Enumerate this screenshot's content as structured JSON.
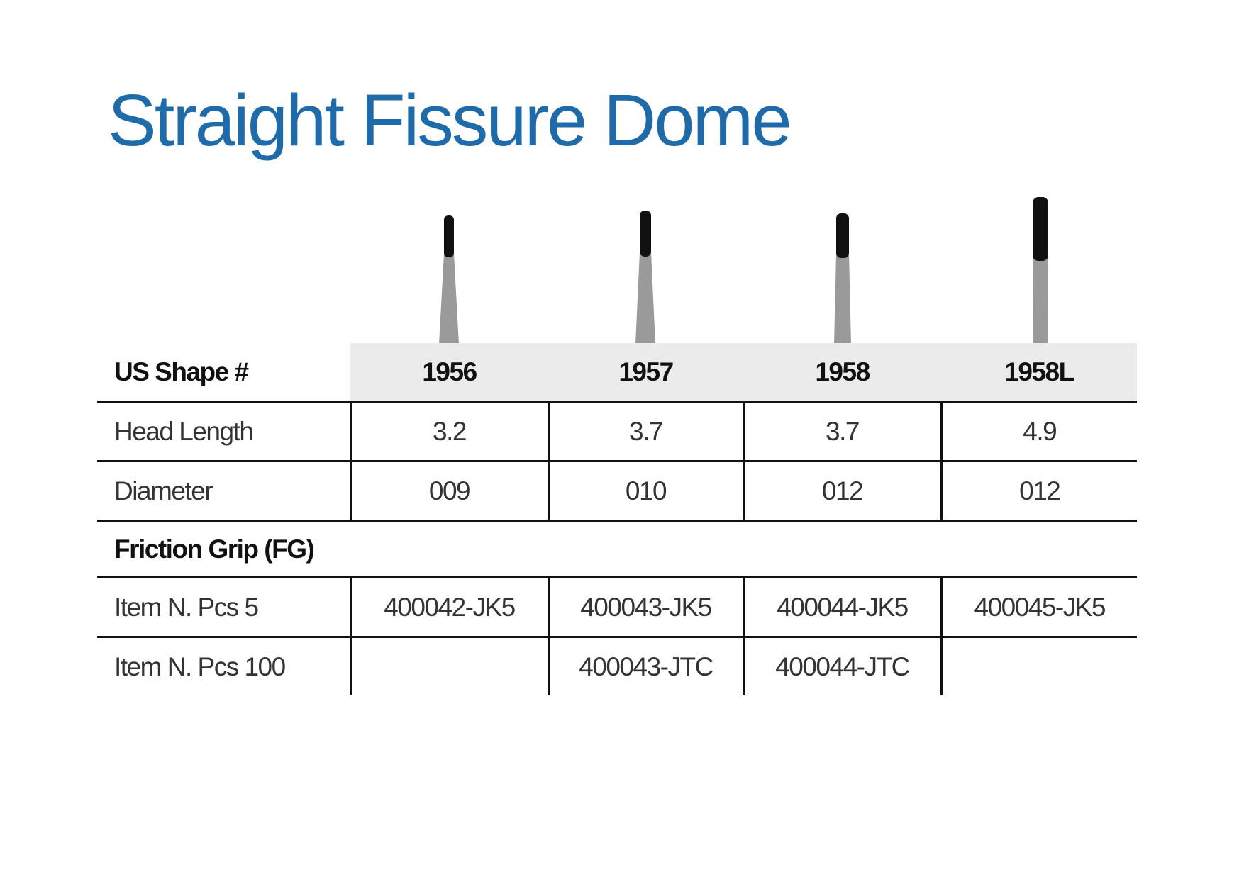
{
  "title": "Straight Fissure Dome",
  "colors": {
    "title": "#1f6aa9",
    "header_fill": "#ebebeb",
    "rules": "#111111",
    "bur_head": "#111111",
    "bur_shank": "#9a9a9a"
  },
  "bur_icons": [
    {
      "shape": "1956",
      "icon": "straight-fissure-dome-bur-icon"
    },
    {
      "shape": "1957",
      "icon": "straight-fissure-dome-bur-icon"
    },
    {
      "shape": "1958",
      "icon": "straight-fissure-dome-bur-icon"
    },
    {
      "shape": "1958L",
      "icon": "straight-fissure-dome-bur-icon"
    }
  ],
  "table": {
    "header_label": "US Shape #",
    "shapes": [
      "1956",
      "1957",
      "1958",
      "1958L"
    ],
    "head_length": {
      "label": "Head Length",
      "values": [
        "3.2",
        "3.7",
        "3.7",
        "4.9"
      ]
    },
    "diameter": {
      "label": "Diameter",
      "values": [
        "009",
        "010",
        "012",
        "012"
      ]
    },
    "section_label": "Friction Grip (FG)",
    "pcs5": {
      "label": "Item N. Pcs 5",
      "values": [
        "400042-JK5",
        "400043-JK5",
        "400044-JK5",
        "400045-JK5"
      ]
    },
    "pcs100": {
      "label": "Item N. Pcs 100",
      "values": [
        "",
        "400043-JTC",
        "400044-JTC",
        ""
      ]
    }
  }
}
